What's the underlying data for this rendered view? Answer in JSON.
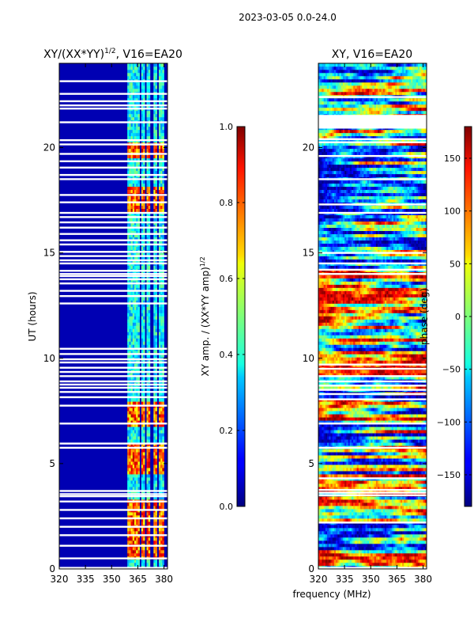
{
  "figure": {
    "suptitle": "2023-03-05 0.0-24.0",
    "xlabel": "frequency (MHz)"
  },
  "chart_data": [
    {
      "type": "heatmap",
      "title_main": "XY/(XX*YY)",
      "title_sup": "1/2",
      "title_rest": ", V16=EA20",
      "xlabel": "",
      "ylabel": "UT (hours)",
      "xlim": [
        320,
        382
      ],
      "ylim": [
        0,
        24
      ],
      "xticks": [
        320,
        335,
        350,
        365,
        380
      ],
      "yticks": [
        0,
        5,
        10,
        15,
        20
      ],
      "colorbar": {
        "label_main": "XY amp. / (XX*YY amp)",
        "label_sup": "1/2",
        "range": [
          0.0,
          1.0
        ],
        "ticks": [
          "0.0",
          "0.2",
          "0.4",
          "0.6",
          "0.8",
          "1.0"
        ],
        "tick_values": [
          0.0,
          0.2,
          0.4,
          0.6,
          0.8,
          1.0
        ],
        "colormap": "jet"
      },
      "background_value": 0.05,
      "bright_channels_mhz": [
        [
          359.5,
          361.5
        ],
        [
          362.5,
          363.5
        ],
        [
          364.5,
          365.5
        ],
        [
          367,
          369
        ],
        [
          370.5,
          372
        ],
        [
          374,
          375.5
        ],
        [
          377.5,
          379.5
        ]
      ],
      "bright_channel_level": 0.38,
      "bright_intervals_ut": [
        [
          0.5,
          3.3
        ],
        [
          4.5,
          6.0
        ],
        [
          6.8,
          8.0
        ],
        [
          17.0,
          18.2
        ],
        [
          19.5,
          20.2
        ]
      ],
      "bright_interval_level": 0.78,
      "flagged_ut_hours": [
        0.05,
        0.5,
        1.1,
        1.6,
        2.0,
        2.4,
        2.8,
        3.2,
        3.45,
        3.55,
        3.7,
        5.75,
        5.95,
        6.9,
        7.75,
        8.15,
        8.4,
        8.6,
        8.75,
        8.9,
        9.15,
        9.35,
        9.55,
        9.8,
        9.95,
        10.2,
        10.45,
        12.6,
        12.95,
        13.2,
        13.55,
        13.75,
        13.9,
        14.0,
        14.15,
        14.5,
        14.65,
        14.85,
        15.05,
        15.4,
        15.6,
        15.9,
        16.2,
        16.45,
        16.7,
        16.9,
        17.4,
        17.75,
        18.5,
        18.7,
        19.05,
        19.35,
        19.7,
        20.15,
        20.35,
        21.2,
        21.85,
        22.0,
        22.2,
        22.55,
        23.15
      ]
    },
    {
      "type": "heatmap",
      "title": "XY, V16=EA20",
      "xlabel": "",
      "ylabel": "",
      "xlim": [
        320,
        382
      ],
      "ylim": [
        0,
        24
      ],
      "xticks": [
        320,
        335,
        350,
        365,
        380
      ],
      "yticks": [
        0,
        5,
        10,
        15,
        20
      ],
      "colorbar": {
        "label": "phase (deg)",
        "range": [
          -180,
          180
        ],
        "ticks": [
          "−150",
          "−100",
          "−50",
          "0",
          "50",
          "100",
          "150"
        ],
        "tick_values": [
          -150,
          -100,
          -50,
          0,
          50,
          100,
          150
        ],
        "colormap": "jet"
      },
      "flagged_ut_hours": [
        0.05,
        2.2,
        3.5,
        3.62,
        3.75,
        4.3,
        5.75,
        6.9,
        8.05,
        8.3,
        8.5,
        8.7,
        8.9,
        9.15,
        9.5,
        9.7,
        14.0,
        14.2,
        14.5,
        15.0,
        16.9,
        17.3,
        18.5,
        19.6,
        20.25,
        20.4,
        22.4
      ],
      "flagged_ut_bands": [
        [
          20.9,
          21.55
        ]
      ]
    }
  ]
}
